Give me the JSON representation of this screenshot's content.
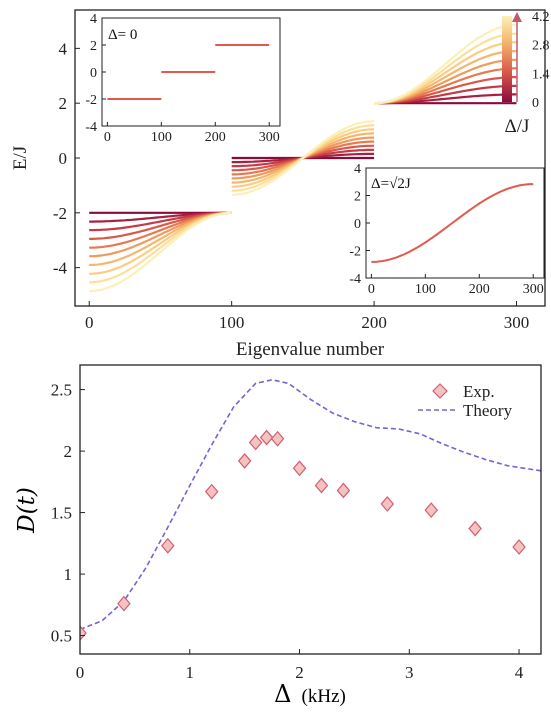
{
  "colors": {
    "gradient": [
      "#8b0a3c",
      "#a8203f",
      "#c23b45",
      "#d8594a",
      "#e7784f",
      "#f09a5c",
      "#f6b66c",
      "#f9cd83",
      "#fbe09c",
      "#fdefb8"
    ],
    "inset_line": "#e05a4e",
    "theory": "#7b5fd6",
    "exp_fill": "#f5c2c2",
    "exp_edge": "#d06070",
    "arrow": "#c05a6a"
  },
  "chart_data": [
    {
      "type": "line",
      "name": "spectrum",
      "xlabel": "Eigenvalue number",
      "ylabel": "E/J",
      "xlim": [
        -10,
        320
      ],
      "ylim": [
        -5.4,
        5.4
      ],
      "xticks": [
        0,
        100,
        200,
        300
      ],
      "yticks": [
        -4,
        -2,
        0,
        2,
        4
      ],
      "delta_values": [
        0.0,
        0.47,
        0.93,
        1.4,
        1.87,
        2.33,
        2.8,
        3.27,
        3.73,
        4.2
      ],
      "bands": [
        {
          "range": [
            0,
            100
          ],
          "center": -2
        },
        {
          "range": [
            100,
            200
          ],
          "center": 0
        },
        {
          "range": [
            200,
            300
          ],
          "center": 2
        }
      ],
      "colorbar": {
        "label": "Δ/J",
        "ticks": [
          "0",
          "1.4",
          "2.8",
          "4.2"
        ],
        "range": [
          0,
          4.2
        ]
      },
      "insets": [
        {
          "title": "Δ= 0",
          "xticks": [
            "0",
            "100",
            "200",
            "300"
          ],
          "yticks": [
            "-4",
            "-2",
            "0",
            "2",
            "4"
          ],
          "xlim": [
            -10,
            320
          ],
          "ylim": [
            -4,
            4
          ],
          "segments": [
            {
              "x": [
                0,
                100
              ],
              "y": -2
            },
            {
              "x": [
                100,
                200
              ],
              "y": 0
            },
            {
              "x": [
                200,
                300
              ],
              "y": 2
            }
          ]
        },
        {
          "title": "Δ=√2J",
          "xticks": [
            "0",
            "100",
            "200",
            "300"
          ],
          "yticks": [
            "-4",
            "-2",
            "0",
            "2",
            "4"
          ],
          "xlim": [
            -10,
            320
          ],
          "ylim": [
            -4,
            4
          ],
          "amplitude": 2.83
        }
      ]
    },
    {
      "type": "scatter",
      "name": "dimension",
      "xlabel": "Δ",
      "xlabel_unit": "(kHz)",
      "ylabel": "D(t)",
      "xlim": [
        0,
        4.2
      ],
      "ylim": [
        0.35,
        2.7
      ],
      "xticks": [
        0,
        1,
        2,
        3,
        4
      ],
      "yticks": [
        0.5,
        1,
        1.5,
        2,
        2.5
      ],
      "series": [
        {
          "name": "Exp.",
          "x": [
            0,
            0.4,
            0.8,
            1.2,
            1.5,
            1.6,
            1.7,
            1.8,
            2.0,
            2.2,
            2.4,
            2.8,
            3.2,
            3.6,
            4.0
          ],
          "y": [
            0.52,
            0.76,
            1.23,
            1.67,
            1.92,
            2.07,
            2.11,
            2.1,
            1.86,
            1.72,
            1.68,
            1.57,
            1.52,
            1.37,
            1.22
          ]
        },
        {
          "name": "Theory",
          "x": [
            0,
            0.2,
            0.4,
            0.6,
            0.8,
            1.0,
            1.2,
            1.4,
            1.6,
            1.75,
            1.9,
            2.1,
            2.3,
            2.5,
            2.7,
            2.9,
            3.1,
            3.3,
            3.5,
            3.7,
            3.9,
            4.2
          ],
          "y": [
            0.55,
            0.62,
            0.78,
            1.05,
            1.38,
            1.72,
            2.05,
            2.36,
            2.55,
            2.58,
            2.55,
            2.42,
            2.31,
            2.24,
            2.19,
            2.18,
            2.14,
            2.06,
            1.99,
            1.93,
            1.88,
            1.84
          ]
        }
      ],
      "legend": {
        "position": "top-right",
        "entries": [
          "Exp.",
          "Theory"
        ]
      }
    }
  ]
}
